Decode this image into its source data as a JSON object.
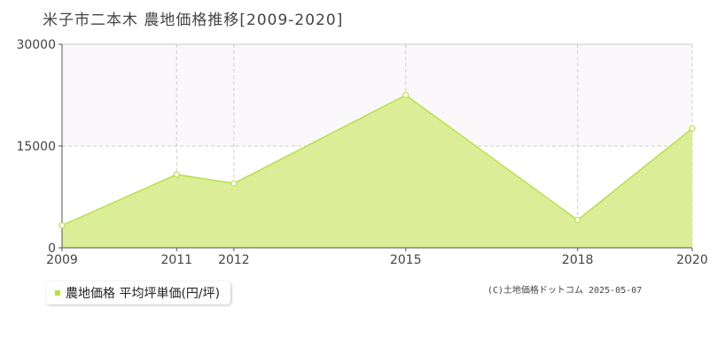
{
  "title": "米子市二本木 農地価格推移[2009-2020]",
  "legend": {
    "label": "農地価格 平均坪単価(円/坪)"
  },
  "copyright": "(C)土地価格ドットコム 2025-05-07",
  "colors": {
    "area_fill": "#dbed96",
    "line": "#b9e04a",
    "band": "#faf8fa",
    "grid": "#cccccc",
    "legend_swatch": "#b9e04a"
  },
  "chart_data": {
    "type": "area",
    "title": "米子市二本木 農地価格推移[2009-2020]",
    "xlabel": "",
    "ylabel": "",
    "x": [
      2009,
      2011,
      2012,
      2015,
      2018,
      2020
    ],
    "xlim": [
      2009,
      2020
    ],
    "ylim": [
      0,
      30000
    ],
    "yticks": [
      0,
      15000,
      30000
    ],
    "ytick_labels": [
      "0",
      "15000",
      "30000"
    ],
    "xtick_labels": [
      "2009",
      "2011",
      "2012",
      "2015",
      "2018",
      "2020"
    ],
    "series": [
      {
        "name": "農地価格 平均坪単価(円/坪)",
        "values": [
          3300,
          10800,
          9500,
          22500,
          4100,
          17600
        ]
      }
    ],
    "grid": true,
    "legend_position": "bottom-left"
  }
}
